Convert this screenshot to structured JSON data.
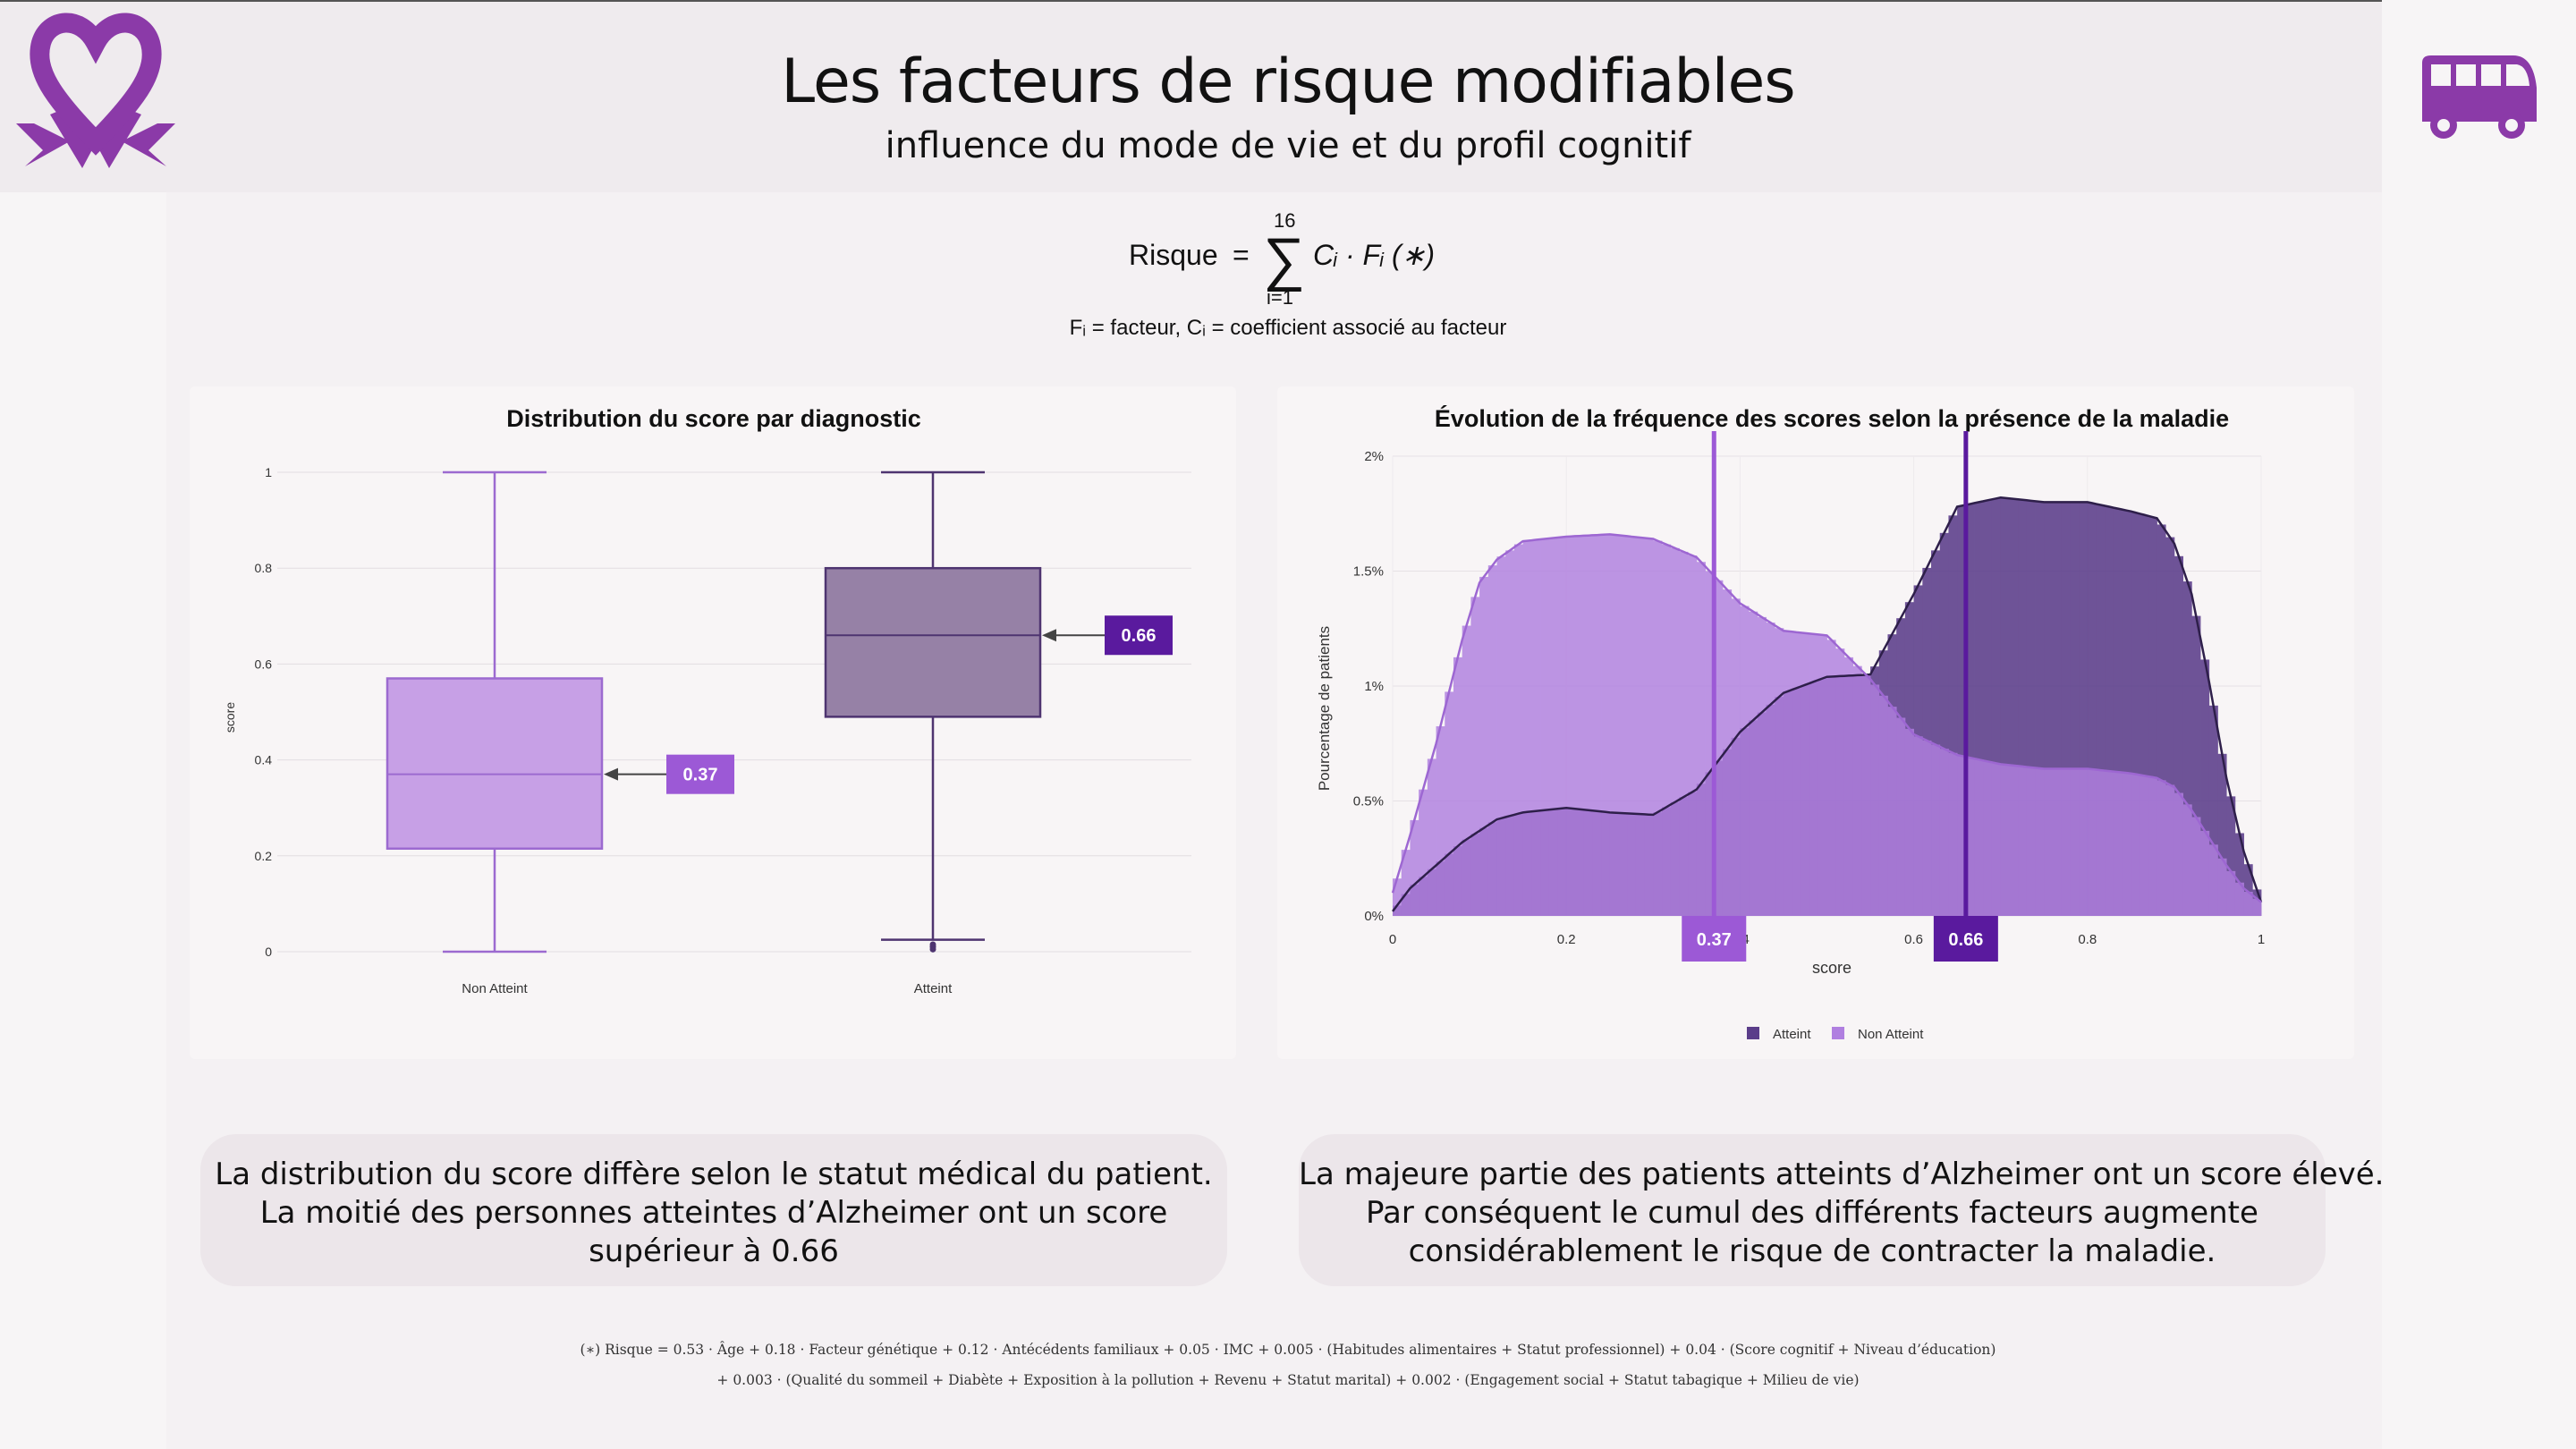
{
  "header": {
    "title": "Les facteurs de risque modifiables",
    "subtitle": "influence du mode de vie et du profil cognitif",
    "left_logo_icon": "purple-awareness-ribbon-heart-icon",
    "right_logo_icon": "purple-bus-icon"
  },
  "formula": {
    "lhs": "Risque",
    "eq": "=",
    "sum_top": "16",
    "sum_bottom": "i=1",
    "rhs": "Cᵢ · Fᵢ (∗)",
    "legend": "Fᵢ = facteur, Cᵢ = coefficient associé au facteur"
  },
  "colors": {
    "non_atteint": "#b07fe0",
    "atteint": "#5b3d8a",
    "badge_non_atteint": "#9c59d6",
    "badge_atteint": "#5a1a9e"
  },
  "chart_data": [
    {
      "type": "box",
      "title": "Distribution du score par diagnostic",
      "xlabel": "",
      "ylabel": "score",
      "ylim": [
        0,
        1
      ],
      "yticks": [
        "0",
        "0.2",
        "0.4",
        "0.6",
        "0.8",
        "1"
      ],
      "series": [
        {
          "name": "Non Atteint",
          "min": 0,
          "q1": 0.215,
          "median": 0.37,
          "q3": 0.57,
          "max": 1,
          "median_label": "0.37",
          "color": "#c7a0e6"
        },
        {
          "name": "Atteint",
          "min": 0.025,
          "q1": 0.49,
          "median": 0.66,
          "q3": 0.8,
          "max": 1,
          "outliers": [
            0.005,
            0.01,
            0.015
          ],
          "median_label": "0.66",
          "color": "#9681a6"
        }
      ]
    },
    {
      "type": "area",
      "title": "Évolution de la fréquence des scores selon la présence de la maladie",
      "xlabel": "score",
      "ylabel": "Pourcentage de patients",
      "xlim": [
        0,
        1
      ],
      "ylim": [
        0,
        2.0
      ],
      "xticks": [
        "0",
        "0.2",
        "0.4",
        "0.6",
        "0.8",
        "1"
      ],
      "yticks": [
        "0%",
        "0.5%",
        "1%",
        "1.5%",
        "2%"
      ],
      "legend": "bottom",
      "x": [
        0,
        0.02,
        0.05,
        0.08,
        0.1,
        0.12,
        0.15,
        0.2,
        0.25,
        0.3,
        0.35,
        0.4,
        0.45,
        0.5,
        0.55,
        0.6,
        0.65,
        0.7,
        0.75,
        0.8,
        0.85,
        0.88,
        0.9,
        0.92,
        0.94,
        0.96,
        0.98,
        1.0
      ],
      "series": [
        {
          "name": "Atteint",
          "values": [
            0.02,
            0.12,
            0.22,
            0.32,
            0.37,
            0.42,
            0.45,
            0.47,
            0.45,
            0.44,
            0.55,
            0.8,
            0.97,
            1.04,
            1.05,
            1.4,
            1.78,
            1.82,
            1.8,
            1.8,
            1.76,
            1.73,
            1.62,
            1.4,
            1.02,
            0.6,
            0.28,
            0.06
          ],
          "color": "#5b3d8a"
        },
        {
          "name": "Non Atteint",
          "values": [
            0.1,
            0.35,
            0.75,
            1.2,
            1.45,
            1.55,
            1.63,
            1.65,
            1.66,
            1.64,
            1.56,
            1.36,
            1.24,
            1.22,
            1.03,
            0.79,
            0.7,
            0.66,
            0.64,
            0.64,
            0.62,
            0.6,
            0.56,
            0.46,
            0.34,
            0.22,
            0.12,
            0.06
          ],
          "color": "#b07fe0"
        }
      ],
      "vlines": [
        {
          "x": 0.37,
          "label": "0.37",
          "color": "#9c59d6"
        },
        {
          "x": 0.66,
          "label": "0.66",
          "color": "#5a1a9e"
        }
      ]
    }
  ],
  "captions": {
    "left": [
      "La distribution du score diffère selon le statut médical du patient.",
      "La moitié des personnes atteintes d’Alzheimer ont un score",
      "supérieur à 0.66"
    ],
    "right": [
      "La majeure partie des patients atteints d’Alzheimer ont un score élevé.",
      "Par conséquent le cumul des différents facteurs augmente",
      "considérablement le risque de contracter la maladie."
    ]
  },
  "footnote": {
    "line1": "(∗) Risque = 0.53 · Âge + 0.18 · Facteur génétique + 0.12 · Antécédents familiaux + 0.05 · IMC + 0.005 · (Habitudes alimentaires + Statut professionnel) + 0.04 · (Score cognitif + Niveau d’éducation)",
    "line2": "+ 0.003 · (Qualité du sommeil + Diabète + Exposition à la pollution + Revenu + Statut marital) + 0.002 · (Engagement social + Statut tabagique + Milieu de vie)"
  }
}
